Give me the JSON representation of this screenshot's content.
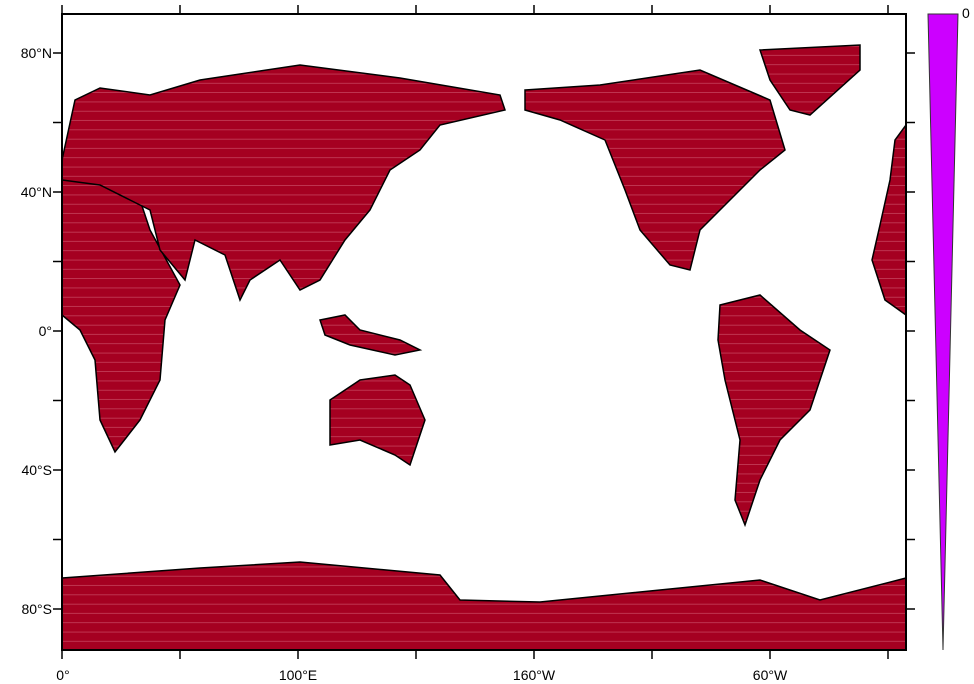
{
  "map": {
    "projection": "cylindrical-equidistant",
    "lon_range": [
      0,
      360
    ],
    "lat_range": [
      -90,
      90
    ],
    "land_fill_color": "#a50021",
    "coastline_color": "#000000",
    "y_tick_labels": [
      "80°N",
      "40°N",
      "0°",
      "40°S",
      "80°S"
    ],
    "x_tick_labels": [
      "0°",
      "100°E",
      "160°W",
      "60°W"
    ]
  },
  "colorbar": {
    "fill_color": "#cc00ff",
    "labels": [
      "0"
    ]
  }
}
